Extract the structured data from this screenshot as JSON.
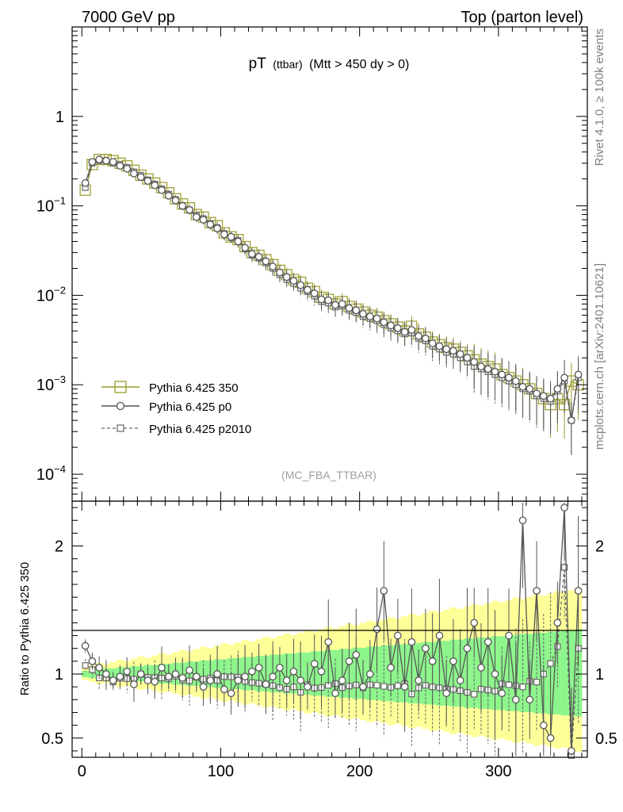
{
  "chart_data": {
    "type": "line",
    "header_left": "7000 GeV pp",
    "header_right": "Top (parton level)",
    "title_main": "pT",
    "title_sub": "(ttbar)",
    "title_cut": "(Mtt > 450 dy > 0)",
    "watermark": "(MC_FBA_TTBAR)",
    "side_label_top": "Rivet 4.1.0, ≥ 100k events",
    "side_label_bottom": "mcplots.cern.ch [arXiv:2401.10621]",
    "ratio_ylabel": "Ratio to Pythia 6.425 350",
    "x_range": [
      -7,
      364
    ],
    "x_ticks": [
      0,
      100,
      200,
      300
    ],
    "x_tick_labels": [
      "0",
      "100",
      "200",
      "300"
    ],
    "main_y_log": true,
    "main_y_range": [
      5e-05,
      10
    ],
    "main_y_ticks": [
      {
        "value": 1,
        "base": "1",
        "exp": ""
      },
      {
        "value": 0.1,
        "base": "10",
        "exp": "−1"
      },
      {
        "value": 0.01,
        "base": "10",
        "exp": "−2"
      },
      {
        "value": 0.001,
        "base": "10",
        "exp": "−3"
      },
      {
        "value": 0.0001,
        "base": "10",
        "exp": "−4"
      }
    ],
    "ratio_y_range": [
      0.35,
      2.35
    ],
    "ratio_y_ticks": [
      0.5,
      1,
      2
    ],
    "ratio_y_tick_labels": [
      "0.5",
      "1",
      "2"
    ],
    "legend": [
      {
        "label": "Pythia 6.425 350",
        "color": "#9a9a2a",
        "style": "solid",
        "marker": "square-large"
      },
      {
        "label": "Pythia 6.425 p0",
        "color": "#555555",
        "style": "solid",
        "marker": "circle"
      },
      {
        "label": "Pythia 6.425 p2010",
        "color": "#666666",
        "style": "dashed",
        "marker": "square-small"
      }
    ],
    "band_colors": {
      "outer": "#ffff99",
      "inner": "#8cf58c"
    },
    "bin_start": 0,
    "bin_width": 5,
    "series": [
      {
        "name": "Pythia 6.425 350",
        "values": [
          0.15,
          0.29,
          0.33,
          0.33,
          0.32,
          0.3,
          0.28,
          0.25,
          0.22,
          0.2,
          0.18,
          0.16,
          0.14,
          0.12,
          0.105,
          0.095,
          0.08,
          0.075,
          0.065,
          0.06,
          0.05,
          0.045,
          0.042,
          0.035,
          0.03,
          0.028,
          0.025,
          0.022,
          0.019,
          0.017,
          0.015,
          0.014,
          0.012,
          0.011,
          0.0095,
          0.009,
          0.008,
          0.0085,
          0.0075,
          0.007,
          0.0065,
          0.006,
          0.0057,
          0.0052,
          0.0048,
          0.0044,
          0.004,
          0.0045,
          0.0037,
          0.0034,
          0.003,
          0.0028,
          0.0026,
          0.0025,
          0.0023,
          0.0021,
          0.0019,
          0.0017,
          0.0016,
          0.0015,
          0.0013,
          0.0012,
          0.0011,
          0.001,
          0.0009,
          0.0008,
          0.0007,
          0.0006,
          0.0007,
          0.0006,
          0.0011,
          0.001
        ]
      },
      {
        "name": "Pythia 6.425 p0",
        "values": [
          0.18,
          0.31,
          0.33,
          0.32,
          0.31,
          0.28,
          0.26,
          0.23,
          0.21,
          0.19,
          0.17,
          0.15,
          0.13,
          0.115,
          0.1,
          0.09,
          0.075,
          0.07,
          0.062,
          0.056,
          0.048,
          0.045,
          0.04,
          0.034,
          0.029,
          0.027,
          0.024,
          0.021,
          0.018,
          0.016,
          0.0145,
          0.013,
          0.0115,
          0.0105,
          0.009,
          0.0088,
          0.0078,
          0.008,
          0.0072,
          0.0068,
          0.0062,
          0.0058,
          0.0055,
          0.005,
          0.0046,
          0.0043,
          0.0039,
          0.0041,
          0.0035,
          0.0033,
          0.0029,
          0.0027,
          0.0025,
          0.0024,
          0.0022,
          0.002,
          0.0018,
          0.0016,
          0.0015,
          0.0014,
          0.0013,
          0.0012,
          0.0011,
          0.00095,
          0.0009,
          0.0008,
          0.00075,
          0.0007,
          0.0009,
          0.0012,
          0.0004,
          0.0013
        ]
      },
      {
        "name": "Pythia 6.425 p2010",
        "values": [
          0.16,
          0.3,
          0.32,
          0.32,
          0.3,
          0.29,
          0.27,
          0.24,
          0.22,
          0.195,
          0.175,
          0.155,
          0.135,
          0.118,
          0.1,
          0.09,
          0.078,
          0.072,
          0.063,
          0.057,
          0.049,
          0.044,
          0.041,
          0.033,
          0.028,
          0.026,
          0.023,
          0.02,
          0.017,
          0.015,
          0.0135,
          0.012,
          0.011,
          0.0098,
          0.0085,
          0.0082,
          0.0074,
          0.0076,
          0.0068,
          0.0064,
          0.0058,
          0.0055,
          0.0052,
          0.0047,
          0.0043,
          0.004,
          0.0037,
          0.0038,
          0.0033,
          0.0031,
          0.0027,
          0.0025,
          0.0023,
          0.0022,
          0.002,
          0.0018,
          0.0016,
          0.0015,
          0.0014,
          0.0013,
          0.0012,
          0.0011,
          0.001,
          0.0009,
          0.00085,
          0.00075,
          0.0007,
          0.00065,
          0.00085,
          0.0011,
          0.0004,
          0.0012
        ]
      }
    ],
    "ratio_p0": [
      1.22,
      1.1,
      1.05,
      1.0,
      0.95,
      0.98,
      1.02,
      0.92,
      1.0,
      0.95,
      0.94,
      1.05,
      0.98,
      1.0,
      0.97,
      1.03,
      0.98,
      0.9,
      0.95,
      1.0,
      0.88,
      0.85,
      0.95,
      0.98,
      1.02,
      1.05,
      0.92,
      0.98,
      1.05,
      0.95,
      1.02,
      0.95,
      0.9,
      1.08,
      1.02,
      1.25,
      0.85,
      0.95,
      1.1,
      1.15,
      0.9,
      1.0,
      1.35,
      1.65,
      1.05,
      1.3,
      0.9,
      1.25,
      0.95,
      1.2,
      1.1,
      1.3,
      0.85,
      1.1,
      0.95,
      1.2,
      1.4,
      1.05,
      1.25,
      1.0,
      0.85,
      1.3,
      0.8,
      2.2,
      0.8,
      1.65,
      0.6,
      0.5,
      1.4,
      2.3,
      0.4,
      1.65
    ]
  }
}
